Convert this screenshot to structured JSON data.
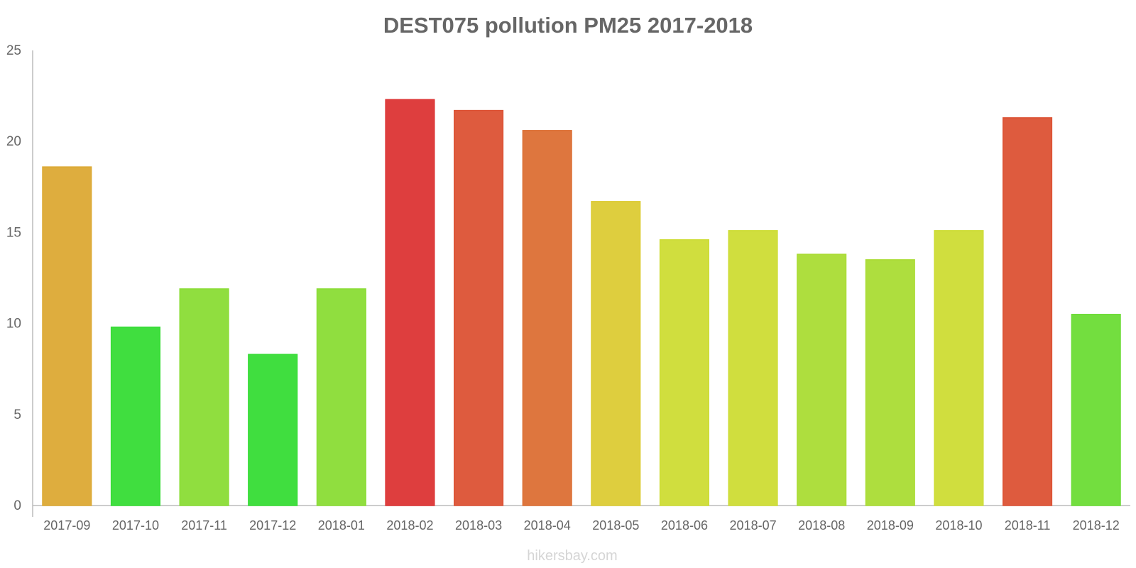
{
  "chart_data": {
    "type": "bar",
    "title": "DEST075 pollution PM25 2017-2018",
    "xlabel": "",
    "ylabel": "",
    "ylim": [
      0,
      25
    ],
    "yticks": [
      0,
      5,
      10,
      15,
      20,
      25
    ],
    "grid": false,
    "legend": "none",
    "categories": [
      "2017-09",
      "2017-10",
      "2017-11",
      "2017-12",
      "2018-01",
      "2018-02",
      "2018-03",
      "2018-04",
      "2018-05",
      "2018-06",
      "2018-07",
      "2018-08",
      "2018-09",
      "2018-10",
      "2018-11",
      "2018-12"
    ],
    "values": [
      18.6,
      9.8,
      11.9,
      8.3,
      11.9,
      22.3,
      21.7,
      20.6,
      16.7,
      14.6,
      15.1,
      13.8,
      13.5,
      15.1,
      21.3,
      10.5
    ],
    "colors": [
      "#dca934",
      "#36dc35",
      "#8adc35",
      "#36dc35",
      "#8adc35",
      "#dc3434",
      "#dc5234",
      "#dc6f34",
      "#dccb34",
      "#cddc34",
      "#cddc34",
      "#aadc34",
      "#aadc34",
      "#cddc34",
      "#dc5234",
      "#6bdc35"
    ]
  },
  "watermark": "hikersbay.com",
  "colors": {
    "axis": "#bbbbbb",
    "text": "#666666",
    "watermark": "#d5d5d5"
  }
}
